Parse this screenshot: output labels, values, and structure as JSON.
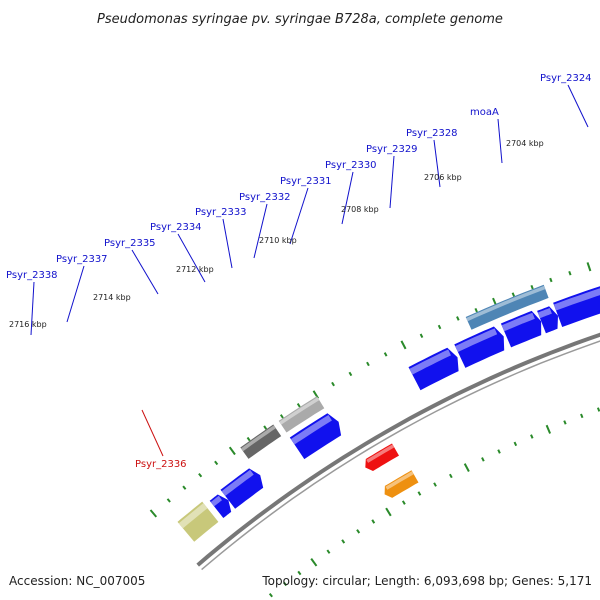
{
  "title": "Pseudomonas syringae pv. syringae B728a, complete genome",
  "footer": {
    "accession": "Accession: NC_007005",
    "summary": "Topology: circular; Length: 6,093,698 bp; Genes: 5,171"
  },
  "colors": {
    "forward_gene": "#1111ee",
    "reverse_gene": "#ee1111",
    "label_forward": "#1111cc",
    "label_reverse": "#cc1111",
    "backbone": "#777777",
    "tick": "#2a8a2a"
  },
  "kbp_ticks": [
    "2704 kbp",
    "2706 kbp",
    "2708 kbp",
    "2710 kbp",
    "2712 kbp",
    "2714 kbp",
    "2716 kbp"
  ],
  "gene_labels": [
    {
      "text": "Psyr_2324",
      "strand": "forward"
    },
    {
      "text": "moaA",
      "strand": "forward"
    },
    {
      "text": "Psyr_2328",
      "strand": "forward"
    },
    {
      "text": "Psyr_2329",
      "strand": "forward"
    },
    {
      "text": "Psyr_2330",
      "strand": "forward"
    },
    {
      "text": "Psyr_2331",
      "strand": "forward"
    },
    {
      "text": "Psyr_2332",
      "strand": "forward"
    },
    {
      "text": "Psyr_2333",
      "strand": "forward"
    },
    {
      "text": "Psyr_2334",
      "strand": "forward"
    },
    {
      "text": "Psyr_2335",
      "strand": "forward"
    },
    {
      "text": "Psyr_2337",
      "strand": "forward"
    },
    {
      "text": "Psyr_2338",
      "strand": "forward"
    },
    {
      "text": "Psyr_2336",
      "strand": "reverse"
    }
  ]
}
